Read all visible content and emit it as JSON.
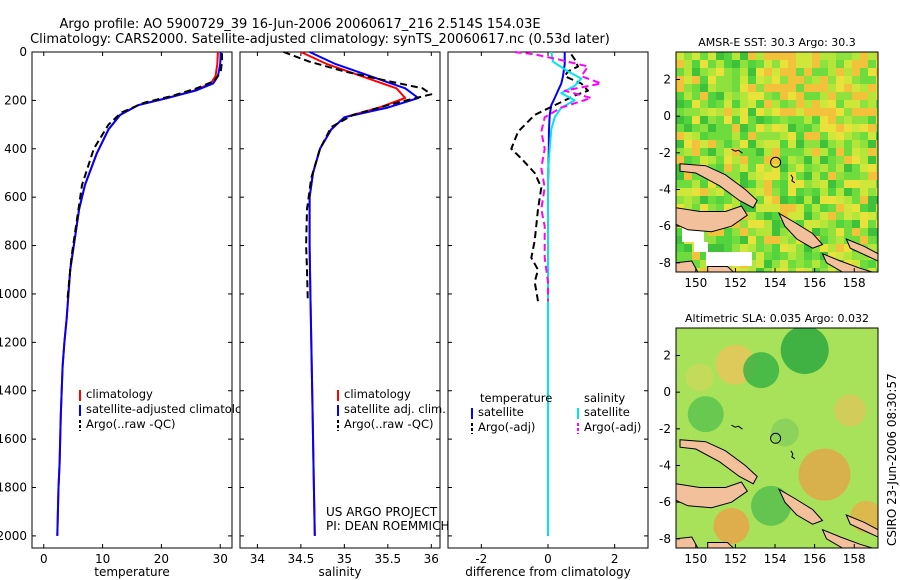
{
  "title": {
    "line1": "Argo profile: AO 5900729_39 16-Jun-2006 20060617_216 2.514S 154.03E",
    "line2": "Climatology: CARS2000. Satellite-adjusted climatology: synTS_20060617.nc (0.53d later)"
  },
  "credit": "CSIRO 23-Jun-2006 08:30:57",
  "project": {
    "line1": "US ARGO PROJECT",
    "line2": "PI: DEAN ROEMMICH"
  },
  "colors": {
    "climatology": "#ff0000",
    "satellite": "#0000ff",
    "argo": "#000000",
    "sat_salinity": "#00e5ee",
    "argo_salinity": "#ff00ff"
  },
  "chart_data": [
    {
      "type": "line",
      "name": "temperature-profile",
      "xlabel": "temperature",
      "ylabel": "",
      "xlim": [
        -2,
        32
      ],
      "ylim": [
        2050,
        0
      ],
      "x_ticks": [
        0,
        10,
        20,
        30
      ],
      "y_ticks": [
        0,
        200,
        400,
        600,
        800,
        1000,
        1200,
        1400,
        1600,
        1800,
        2000
      ],
      "legend": [
        "climatology",
        "satellite-adjusted climatology",
        "Argo(..raw -QC)"
      ],
      "series": [
        {
          "name": "climatology",
          "color": "#ff0000",
          "dash": "solid",
          "x": [
            29.6,
            29.5,
            29.2,
            28.4,
            25.5,
            21.0,
            16.0,
            13.0,
            11.0,
            9.0,
            7.0,
            6.0,
            5.1,
            4.5,
            3.9,
            3.5,
            3.2,
            2.9,
            2.7,
            2.5,
            2.3
          ],
          "y": [
            0,
            50,
            100,
            130,
            160,
            190,
            220,
            260,
            320,
            420,
            550,
            650,
            800,
            900,
            1100,
            1200,
            1300,
            1500,
            1700,
            1800,
            2000
          ]
        },
        {
          "name": "satellite-adjusted climatology",
          "color": "#0000ff",
          "dash": "solid",
          "x": [
            30.1,
            30.0,
            29.6,
            28.8,
            25.8,
            21.0,
            16.0,
            13.0,
            11.0,
            9.0,
            7.0,
            6.0,
            5.1,
            4.5,
            3.9,
            3.5,
            3.2,
            2.9,
            2.7,
            2.5,
            2.3
          ],
          "y": [
            0,
            50,
            100,
            130,
            160,
            190,
            220,
            260,
            320,
            420,
            550,
            650,
            800,
            900,
            1100,
            1200,
            1300,
            1500,
            1700,
            1800,
            2000
          ]
        },
        {
          "name": "Argo(..raw -QC)",
          "color": "#000000",
          "dash": "dashed",
          "x": [
            30.3,
            30.3,
            30.1,
            29.0,
            26.0,
            22.0,
            17.0,
            13.2,
            11.0,
            8.5,
            6.5,
            5.3,
            4.7,
            4.3,
            4.0
          ],
          "y": [
            5,
            40,
            80,
            120,
            150,
            180,
            210,
            250,
            300,
            400,
            550,
            750,
            850,
            950,
            1030
          ]
        }
      ]
    },
    {
      "type": "line",
      "name": "salinity-profile",
      "xlabel": "salinity",
      "xlim": [
        33.8,
        36.1
      ],
      "ylim": [
        2050,
        0
      ],
      "x_ticks": [
        34,
        34.5,
        35,
        35.5,
        36
      ],
      "legend": [
        "climatology",
        "satellite adj. clim.",
        "Argo(..raw -QC)"
      ],
      "series": [
        {
          "name": "climatology",
          "color": "#ff0000",
          "dash": "solid",
          "x": [
            34.5,
            34.8,
            35.2,
            35.6,
            35.7,
            35.4,
            35.0,
            34.85,
            34.72,
            34.64,
            34.6,
            34.6,
            34.61,
            34.63,
            34.65,
            34.66
          ],
          "y": [
            0,
            50,
            100,
            150,
            190,
            230,
            270,
            320,
            400,
            500,
            600,
            800,
            1000,
            1400,
            1800,
            2000
          ]
        },
        {
          "name": "satellite adj. clim.",
          "color": "#0000ff",
          "dash": "solid",
          "x": [
            34.6,
            34.9,
            35.3,
            35.7,
            35.85,
            35.5,
            35.0,
            34.85,
            34.72,
            34.64,
            34.6,
            34.6,
            34.61,
            34.63,
            34.65,
            34.66
          ],
          "y": [
            0,
            50,
            100,
            150,
            190,
            230,
            270,
            320,
            400,
            500,
            600,
            800,
            1000,
            1400,
            1800,
            2000
          ]
        },
        {
          "name": "Argo(..raw -QC)",
          "color": "#000000",
          "dash": "dashed",
          "x": [
            34.3,
            34.6,
            35.0,
            35.5,
            35.9,
            36.0,
            35.6,
            35.1,
            34.85,
            34.72,
            34.62,
            34.57,
            34.56,
            34.57,
            34.58
          ],
          "y": [
            0,
            40,
            80,
            120,
            150,
            175,
            210,
            260,
            310,
            400,
            520,
            650,
            800,
            900,
            1030
          ]
        }
      ]
    },
    {
      "type": "line",
      "name": "difference-profile",
      "xlabel": "difference from climatology",
      "xlim": [
        -3,
        3
      ],
      "ylim": [
        2050,
        0
      ],
      "x_ticks": [
        -2,
        0,
        2
      ],
      "legend_groups": [
        {
          "title": "temperature",
          "items": [
            "satellite",
            "Argo(-adj)"
          ]
        },
        {
          "title": "salinity",
          "items": [
            "satellite",
            "Argo(-adj)"
          ]
        }
      ],
      "series": [
        {
          "name": "temperature satellite",
          "color": "#0000ff",
          "dash": "solid",
          "x": [
            0.5,
            0.5,
            0.45,
            0.4,
            0.3,
            0.2,
            0.1,
            0.05,
            0.03,
            0.02,
            0.0,
            0.0,
            0.0
          ],
          "y": [
            0,
            50,
            100,
            130,
            160,
            190,
            220,
            260,
            320,
            420,
            550,
            800,
            2000
          ]
        },
        {
          "name": "temperature Argo(-adj)",
          "color": "#000000",
          "dash": "dashed",
          "x": [
            0.7,
            0.8,
            0.9,
            0.6,
            0.5,
            1.0,
            1.2,
            0.8,
            0.2,
            -0.4,
            -0.9,
            -1.1,
            -0.8,
            -0.6,
            -0.4,
            -0.2,
            -0.3,
            -0.4,
            -0.5,
            -0.3,
            -0.4,
            -0.3
          ],
          "y": [
            10,
            30,
            60,
            80,
            100,
            130,
            160,
            180,
            220,
            260,
            330,
            400,
            440,
            470,
            500,
            560,
            650,
            780,
            850,
            900,
            950,
            1030
          ]
        },
        {
          "name": "salinity satellite",
          "color": "#00e5ee",
          "dash": "solid",
          "x": [
            0.1,
            0.15,
            0.6,
            1.0,
            0.8,
            0.4,
            0.8,
            0.4,
            0.2,
            0.1,
            0.05,
            0.0,
            0.0,
            0.0
          ],
          "y": [
            0,
            40,
            80,
            110,
            140,
            170,
            200,
            230,
            270,
            320,
            400,
            500,
            800,
            2000
          ]
        },
        {
          "name": "salinity Argo(-adj)",
          "color": "#ff00ff",
          "dash": "dashed",
          "x": [
            -1.0,
            -0.4,
            0.3,
            1.2,
            1.0,
            1.6,
            0.5,
            1.3,
            0.4,
            -0.1,
            -0.2,
            -0.1,
            -0.2,
            -0.1,
            -0.2,
            -0.1,
            -0.1,
            -0.1,
            0.0,
            0.0
          ],
          "y": [
            0,
            10,
            30,
            60,
            100,
            130,
            160,
            190,
            230,
            270,
            330,
            400,
            480,
            560,
            650,
            720,
            780,
            850,
            950,
            1030
          ]
        }
      ]
    },
    {
      "type": "heatmap",
      "name": "sst-map",
      "title": "AMSR-E SST: 30.3 Argo: 30.3",
      "xlim": [
        149,
        159.2
      ],
      "ylim": [
        -8.5,
        3.5
      ],
      "x_ticks": [
        150,
        152,
        154,
        156,
        158
      ],
      "y_ticks": [
        2,
        0,
        -2,
        -4,
        -6,
        -8
      ],
      "marker": {
        "lon": 154.03,
        "lat": -2.514
      }
    },
    {
      "type": "heatmap",
      "name": "sla-map",
      "title": "Altimetric SLA: 0.035 Argo: 0.032",
      "xlim": [
        149,
        159.2
      ],
      "ylim": [
        -8.5,
        3.5
      ],
      "x_ticks": [
        150,
        152,
        154,
        156,
        158
      ],
      "y_ticks": [
        2,
        0,
        -2,
        -4,
        -6,
        -8
      ],
      "marker": {
        "lon": 154.03,
        "lat": -2.514
      }
    }
  ]
}
